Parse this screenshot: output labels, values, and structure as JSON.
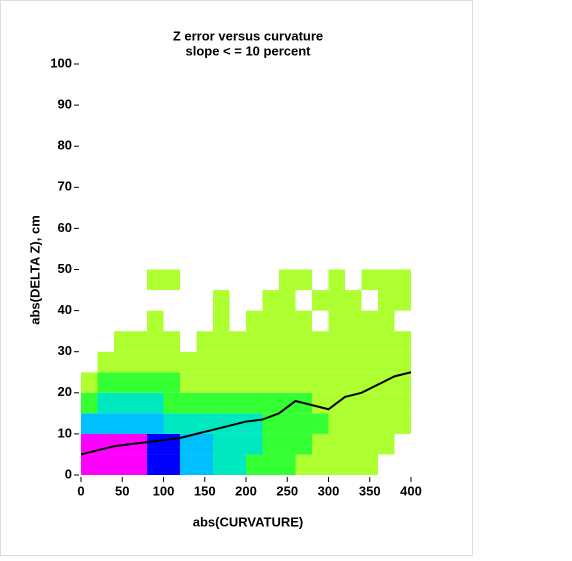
{
  "chart_data": {
    "type": "heatmap",
    "title": "Z error versus curvature",
    "subtitle": "slope < = 10 percent",
    "xlabel": "abs(CURVATURE)",
    "ylabel": "abs(DELTA Z), cm",
    "xlim": [
      0,
      400
    ],
    "ylim": [
      0,
      100
    ],
    "xticks": [
      0,
      50,
      100,
      150,
      200,
      250,
      300,
      350,
      400
    ],
    "yticks": [
      0,
      10,
      20,
      30,
      40,
      50,
      60,
      70,
      80,
      90,
      100
    ],
    "x_bins": [
      0,
      20,
      40,
      60,
      80,
      100,
      120,
      140,
      160,
      180,
      200,
      220,
      240,
      260,
      280,
      300,
      320,
      340,
      360,
      380,
      400
    ],
    "y_bins": [
      0,
      5,
      10,
      15,
      20,
      25,
      30,
      35,
      40,
      45,
      50
    ],
    "colors": [
      "#ffffff",
      "#adff2f",
      "#33ff33",
      "#00e8c0",
      "#00bfff",
      "#0000ff",
      "#ff00ff"
    ],
    "z": [
      [
        6,
        6,
        6,
        6,
        5,
        5,
        4,
        4,
        3,
        3,
        2,
        2,
        2,
        1,
        1,
        1,
        1,
        1,
        0,
        0
      ],
      [
        6,
        6,
        6,
        6,
        5,
        5,
        4,
        4,
        3,
        3,
        3,
        2,
        2,
        2,
        1,
        1,
        1,
        1,
        1,
        0
      ],
      [
        4,
        4,
        4,
        4,
        4,
        3,
        3,
        3,
        3,
        3,
        3,
        2,
        2,
        2,
        2,
        1,
        1,
        1,
        1,
        1
      ],
      [
        2,
        3,
        3,
        3,
        3,
        2,
        2,
        2,
        2,
        2,
        2,
        2,
        2,
        2,
        1,
        1,
        1,
        1,
        1,
        1
      ],
      [
        1,
        2,
        2,
        2,
        2,
        2,
        1,
        1,
        1,
        1,
        1,
        1,
        1,
        1,
        1,
        1,
        1,
        1,
        1,
        1
      ],
      [
        0,
        1,
        1,
        1,
        1,
        1,
        1,
        1,
        1,
        1,
        1,
        1,
        1,
        1,
        1,
        1,
        1,
        1,
        1,
        1
      ],
      [
        0,
        0,
        1,
        1,
        1,
        1,
        0,
        1,
        1,
        1,
        1,
        1,
        1,
        1,
        1,
        1,
        1,
        1,
        1,
        1
      ],
      [
        0,
        0,
        0,
        0,
        1,
        0,
        0,
        0,
        1,
        0,
        1,
        1,
        1,
        1,
        0,
        1,
        1,
        1,
        1,
        0
      ],
      [
        0,
        0,
        0,
        0,
        0,
        0,
        0,
        0,
        1,
        0,
        0,
        1,
        1,
        0,
        1,
        1,
        1,
        0,
        1,
        1
      ],
      [
        0,
        0,
        0,
        0,
        1,
        1,
        0,
        0,
        0,
        0,
        0,
        0,
        1,
        1,
        0,
        1,
        0,
        1,
        1,
        1
      ]
    ],
    "line": {
      "color": "#000000",
      "x": [
        0,
        20,
        40,
        60,
        80,
        100,
        120,
        140,
        160,
        180,
        200,
        220,
        240,
        260,
        280,
        300,
        320,
        340,
        360,
        380,
        400
      ],
      "values": [
        5,
        6,
        7,
        7.5,
        8,
        8.5,
        9,
        10,
        11,
        12,
        13,
        13.5,
        15,
        18,
        17,
        16,
        19,
        20,
        22,
        24,
        25
      ]
    }
  }
}
